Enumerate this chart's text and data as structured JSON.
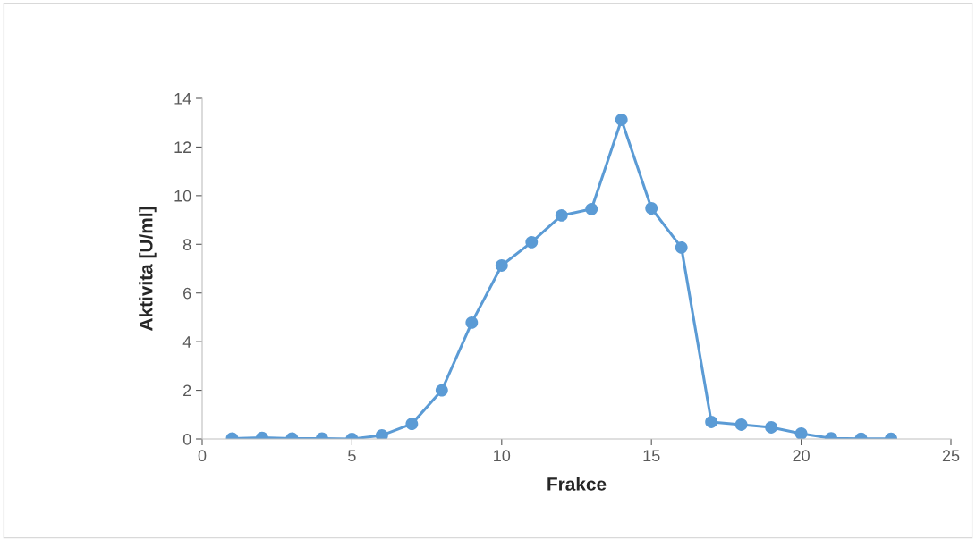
{
  "chart_data": {
    "type": "line",
    "xlabel": "Frakce",
    "ylabel": "Aktivita [U/ml]",
    "x": [
      1,
      2,
      3,
      4,
      5,
      6,
      7,
      8,
      9,
      10,
      11,
      12,
      13,
      14,
      15,
      16,
      17,
      18,
      19,
      20,
      21,
      22,
      23
    ],
    "series": [
      {
        "color": "#5b9bd5",
        "values": [
          0.02,
          0.05,
          0.02,
          0.02,
          0.0,
          0.15,
          0.62,
          2.0,
          4.78,
          7.13,
          8.09,
          9.19,
          9.45,
          13.12,
          9.48,
          7.87,
          0.7,
          0.59,
          0.48,
          0.22,
          0.03,
          0.01,
          0.01
        ]
      }
    ],
    "xlim": [
      0,
      25
    ],
    "xticks": [
      0,
      5,
      10,
      15,
      20,
      25
    ],
    "ylim": [
      0,
      14
    ],
    "yticks": [
      0,
      2,
      4,
      6,
      8,
      10,
      12,
      14
    ],
    "grid": false,
    "marker": "circle",
    "line_style": "solid"
  }
}
